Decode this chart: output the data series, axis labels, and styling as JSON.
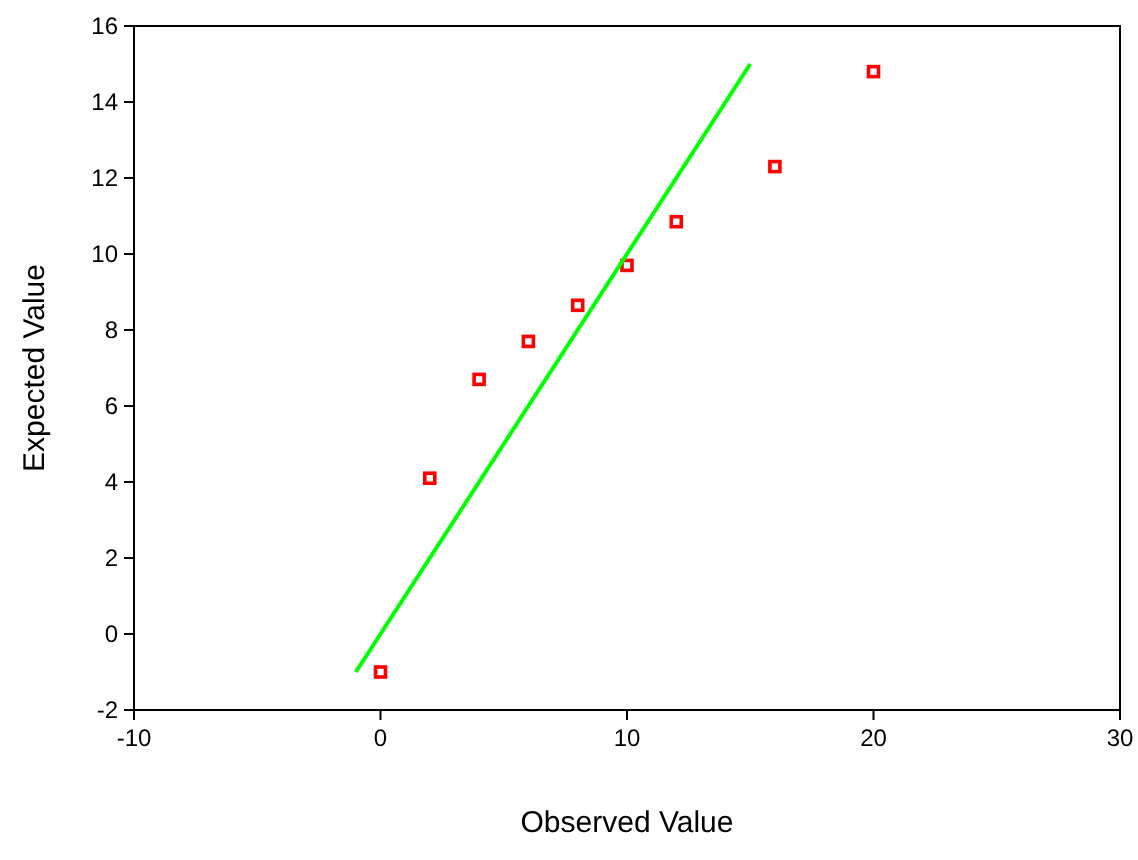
{
  "chart_data": {
    "type": "scatter",
    "xlabel": "Observed Value",
    "ylabel": "Expected Value",
    "xlim": [
      -10,
      30
    ],
    "xticks": [
      -10,
      0,
      10,
      20,
      30
    ],
    "ylim": [
      -2,
      16
    ],
    "yticks": [
      -2,
      0,
      2,
      4,
      6,
      8,
      10,
      12,
      14,
      16
    ],
    "grid": false,
    "series": [
      {
        "color": "#ff0000",
        "marker": "square",
        "x": [
          0,
          2,
          4,
          6,
          8,
          10,
          12,
          16,
          20
        ],
        "values": [
          -1,
          4.1,
          6.7,
          7.7,
          8.65,
          9.7,
          10.85,
          12.3,
          14.8
        ]
      },
      {
        "type": "line",
        "color": "#00ff00",
        "x": [
          -1,
          15
        ],
        "values": [
          -1,
          15
        ]
      }
    ]
  }
}
